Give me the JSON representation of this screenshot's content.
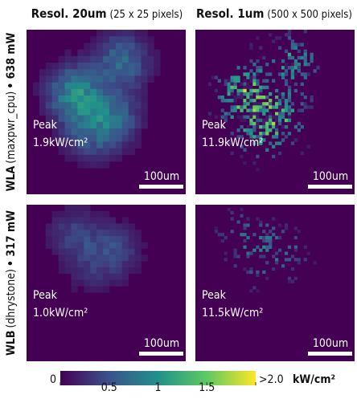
{
  "columns": [
    {
      "resolution": "Resol. 20um",
      "pixels": "(25 x 25 pixels)"
    },
    {
      "resolution": "Resol. 1um",
      "pixels": "(500 x 500 pixels)"
    }
  ],
  "rows": [
    {
      "name": "WLA",
      "workload": "(maxpwr_cpu)",
      "power": "• 638 mW",
      "panels": [
        {
          "peak_label": "Peak",
          "peak": "1.9kW/cm²",
          "scale_bar": "100um"
        },
        {
          "peak_label": "Peak",
          "peak": "11.9kW/cm²",
          "scale_bar": "100um"
        }
      ]
    },
    {
      "name": "WLB",
      "workload": "(dhrystone)",
      "power": "• 317 mW",
      "panels": [
        {
          "peak_label": "Peak",
          "peak": "1.0kW/cm²",
          "scale_bar": "100um"
        },
        {
          "peak_label": "Peak",
          "peak": "11.5kW/cm²",
          "scale_bar": "100um"
        }
      ]
    }
  ],
  "colorbar": {
    "lim": [
      0,
      2
    ],
    "ticks": [
      0,
      0.5,
      1,
      1.5,
      {
        "value": 2,
        "label": ">2.0"
      }
    ],
    "unit": "kW/cm²"
  }
}
